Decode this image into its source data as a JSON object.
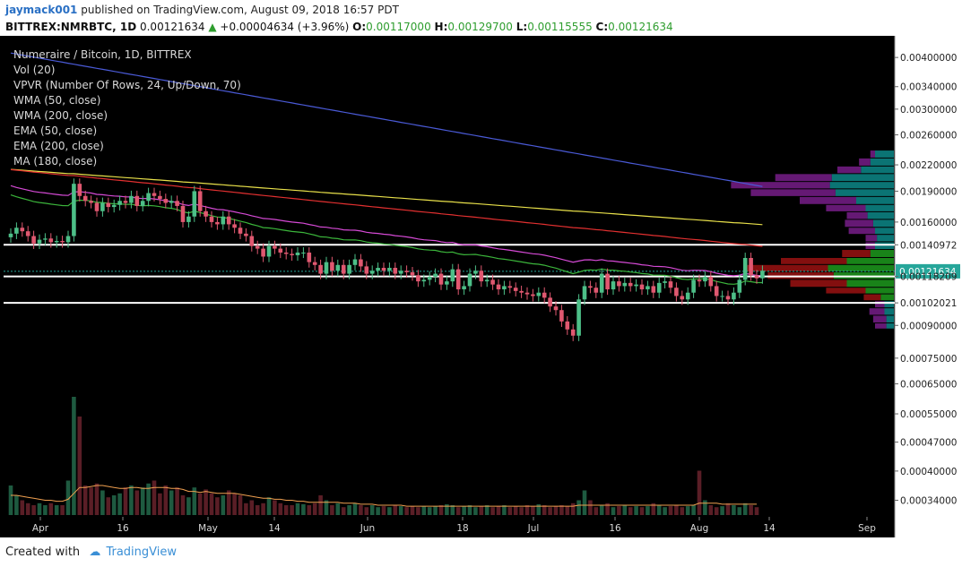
{
  "header": {
    "author": "jaymack001",
    "published_text": "published on TradingView.com, August 09, 2018 16:57 PDT",
    "symbol_line": "BITTREX:NMRBTC, 1D",
    "last": "0.00121634",
    "change_arrow": "▲",
    "change": "+0.00004634 (+3.96%)",
    "o_label": "O:",
    "o_value": "0.00117000",
    "h_label": "H:",
    "h_value": "0.00129700",
    "l_label": "L:",
    "l_value": "0.00115555",
    "c_label": "C:",
    "c_value": "0.00121634"
  },
  "indicators": [
    "Numeraire / Bitcoin, 1D, BITTREX",
    "Vol (20)",
    "VPVR (Number Of Rows, 24, Up/Down, 70)",
    "WMA (50, close)",
    "WMA (200, close)",
    "EMA (50, close)",
    "EMA (200, close)",
    "MA (180, close)"
  ],
  "footer": {
    "created_with": "Created with",
    "brand": "TradingView"
  },
  "colors": {
    "up": "#4dbf88",
    "down": "#e05870",
    "wma50": "#d64ad6",
    "wma200": "#e8e04a",
    "ema50": "#3bb53b",
    "ema200": "#e23030",
    "ma180": "#4a5ad6",
    "vpvr_up": "#0c7a7a",
    "vpvr_down": "#6a1a7a",
    "vpvr_value_area_up": "#1a8a1a",
    "vpvr_value_area_down": "#8a1010",
    "level_line": "#ffffff",
    "last_price_badge": "#26a69a",
    "level_badge": "#ffffff"
  },
  "chart_data": {
    "type": "candlestick",
    "symbol": "BITTREX:NMRBTC",
    "timeframe": "1D",
    "x_ticks": [
      "Apr",
      "16",
      "May",
      "14",
      "Jun",
      "18",
      "Jul",
      "16",
      "Aug",
      "14",
      "Sep"
    ],
    "y_ticks": [
      "0.00400000",
      "0.00340000",
      "0.00300000",
      "0.00260000",
      "0.00220000",
      "0.00190000",
      "0.00160000",
      "0.00140972",
      "0.00121634",
      "0.00118209",
      "0.00102021",
      "0.00090000",
      "0.00075000",
      "0.00065000",
      "0.00055000",
      "0.00047000",
      "0.00040000",
      "0.00034000"
    ],
    "y_scale": "log",
    "y_range": [
      0.00031,
      0.00425
    ],
    "horizontal_levels": [
      0.00140972,
      0.00118209,
      0.00102021
    ],
    "last_price": 0.00121634,
    "close_series": [
      0.0015,
      0.00155,
      0.00152,
      0.00148,
      0.00142,
      0.00145,
      0.00146,
      0.00143,
      0.00144,
      0.00143,
      0.00148,
      0.00198,
      0.00185,
      0.0018,
      0.00178,
      0.0017,
      0.00178,
      0.00174,
      0.00176,
      0.0018,
      0.00178,
      0.00185,
      0.00175,
      0.0018,
      0.00188,
      0.00185,
      0.00182,
      0.00178,
      0.0018,
      0.00175,
      0.0016,
      0.00165,
      0.0019,
      0.0017,
      0.00165,
      0.0016,
      0.00158,
      0.00165,
      0.00158,
      0.00155,
      0.0015,
      0.00148,
      0.0014,
      0.00138,
      0.00132,
      0.0014,
      0.00138,
      0.00135,
      0.00134,
      0.00133,
      0.00135,
      0.00135,
      0.00128,
      0.00126,
      0.0012,
      0.00128,
      0.00122,
      0.00126,
      0.0012,
      0.00126,
      0.0013,
      0.00125,
      0.0012,
      0.00122,
      0.00124,
      0.00122,
      0.00124,
      0.0012,
      0.00122,
      0.00121,
      0.00119,
      0.00115,
      0.00116,
      0.00118,
      0.0012,
      0.00113,
      0.00115,
      0.00123,
      0.0011,
      0.00112,
      0.0012,
      0.00122,
      0.00115,
      0.00116,
      0.00113,
      0.0011,
      0.00112,
      0.00111,
      0.00109,
      0.00108,
      0.00107,
      0.00106,
      0.00108,
      0.00105,
      0.001,
      0.00098,
      0.00092,
      0.00088,
      0.00085,
      0.00104,
      0.00112,
      0.00111,
      0.00108,
      0.0012,
      0.0011,
      0.00115,
      0.00112,
      0.00114,
      0.00112,
      0.00113,
      0.0011,
      0.00112,
      0.00108,
      0.00114,
      0.00115,
      0.00111,
      0.00106,
      0.00104,
      0.00108,
      0.00116,
      0.00115,
      0.00118,
      0.00112,
      0.00106,
      0.00106,
      0.00104,
      0.00108,
      0.00116,
      0.00131,
      0.00119,
      0.00117,
      0.00122
    ],
    "ma_series": {
      "WMA 50": {
        "start": [
          0,
          0.002
        ],
        "end": [
          128,
          0.00118
        ]
      },
      "WMA 200": {
        "start": [
          0,
          0.00215
        ],
        "end": [
          128,
          0.00158
        ]
      },
      "EMA 50": {
        "start": [
          0,
          0.0019
        ],
        "end": [
          128,
          0.00112
        ]
      },
      "EMA 200": {
        "start": [
          0,
          0.00215
        ],
        "end": [
          128,
          0.0014
        ]
      },
      "MA 180": {
        "start": [
          0,
          0.0041
        ],
        "end": [
          128,
          0.00195
        ]
      }
    },
    "vpvr_rows_price": [
      0.00088,
      0.00091,
      0.00095,
      0.00099,
      0.00103,
      0.00107,
      0.00111,
      0.00116,
      0.00121,
      0.00126,
      0.00131,
      0.00137,
      0.00143,
      0.00149,
      0.00155,
      0.00162,
      0.00169,
      0.00176,
      0.00184,
      0.00192,
      0.002,
      0.00209,
      0.00218,
      0.00228
    ],
    "vpvr_up": [
      8,
      8,
      10,
      10,
      14,
      30,
      50,
      64,
      70,
      50,
      25,
      20,
      18,
      20,
      22,
      28,
      30,
      40,
      62,
      68,
      66,
      35,
      25,
      20
    ],
    "vpvr_down": [
      12,
      14,
      16,
      10,
      18,
      42,
      60,
      70,
      90,
      70,
      30,
      10,
      12,
      28,
      30,
      22,
      42,
      60,
      90,
      105,
      60,
      25,
      12,
      5
    ],
    "volume_series": [
      0.3,
      0.2,
      0.15,
      0.12,
      0.1,
      0.12,
      0.1,
      0.12,
      0.1,
      0.1,
      0.35,
      1.2,
      1.0,
      0.3,
      0.28,
      0.32,
      0.25,
      0.18,
      0.2,
      0.22,
      0.28,
      0.3,
      0.25,
      0.28,
      0.32,
      0.35,
      0.22,
      0.3,
      0.25,
      0.28,
      0.2,
      0.18,
      0.28,
      0.22,
      0.26,
      0.22,
      0.18,
      0.2,
      0.25,
      0.22,
      0.2,
      0.12,
      0.15,
      0.1,
      0.12,
      0.18,
      0.15,
      0.12,
      0.1,
      0.1,
      0.12,
      0.11,
      0.1,
      0.12,
      0.2,
      0.15,
      0.1,
      0.12,
      0.08,
      0.1,
      0.12,
      0.1,
      0.08,
      0.1,
      0.08,
      0.09,
      0.08,
      0.1,
      0.09,
      0.08,
      0.09,
      0.08,
      0.09,
      0.08,
      0.09,
      0.1,
      0.11,
      0.1,
      0.08,
      0.09,
      0.1,
      0.08,
      0.09,
      0.1,
      0.08,
      0.09,
      0.1,
      0.08,
      0.09,
      0.08,
      0.1,
      0.09,
      0.11,
      0.1,
      0.08,
      0.09,
      0.1,
      0.09,
      0.12,
      0.15,
      0.25,
      0.15,
      0.08,
      0.1,
      0.12,
      0.08,
      0.09,
      0.1,
      0.08,
      0.09,
      0.08,
      0.09,
      0.12,
      0.1,
      0.08,
      0.09,
      0.1,
      0.08,
      0.09,
      0.1,
      0.45,
      0.15,
      0.1,
      0.08,
      0.09,
      0.12,
      0.1,
      0.08,
      0.12,
      0.1,
      0.08
    ],
    "volume_ma_series": [
      0.2,
      0.2,
      0.19,
      0.18,
      0.17,
      0.16,
      0.15,
      0.15,
      0.14,
      0.14,
      0.16,
      0.22,
      0.28,
      0.28,
      0.29,
      0.3,
      0.3,
      0.29,
      0.28,
      0.27,
      0.27,
      0.28,
      0.28,
      0.27,
      0.27,
      0.28,
      0.28,
      0.28,
      0.27,
      0.27,
      0.26,
      0.24,
      0.24,
      0.23,
      0.24,
      0.23,
      0.22,
      0.22,
      0.22,
      0.22,
      0.21,
      0.2,
      0.19,
      0.18,
      0.17,
      0.17,
      0.16,
      0.16,
      0.15,
      0.15,
      0.14,
      0.14,
      0.13,
      0.13,
      0.13,
      0.13,
      0.13,
      0.13,
      0.12,
      0.12,
      0.12,
      0.11,
      0.11,
      0.11,
      0.1,
      0.1,
      0.1,
      0.1,
      0.1,
      0.09,
      0.09,
      0.09,
      0.09,
      0.09,
      0.09,
      0.09,
      0.09,
      0.09,
      0.09,
      0.09,
      0.09,
      0.09,
      0.09,
      0.09,
      0.09,
      0.09,
      0.09,
      0.09,
      0.09,
      0.09,
      0.09,
      0.09,
      0.09,
      0.09,
      0.09,
      0.09,
      0.09,
      0.09,
      0.09,
      0.1,
      0.1,
      0.1,
      0.1,
      0.1,
      0.1,
      0.1,
      0.1,
      0.1,
      0.1,
      0.1,
      0.1,
      0.1,
      0.1,
      0.1,
      0.1,
      0.1,
      0.1,
      0.1,
      0.1,
      0.1,
      0.12,
      0.12,
      0.12,
      0.12,
      0.11,
      0.11,
      0.11,
      0.11,
      0.11,
      0.11,
      0.11
    ]
  }
}
